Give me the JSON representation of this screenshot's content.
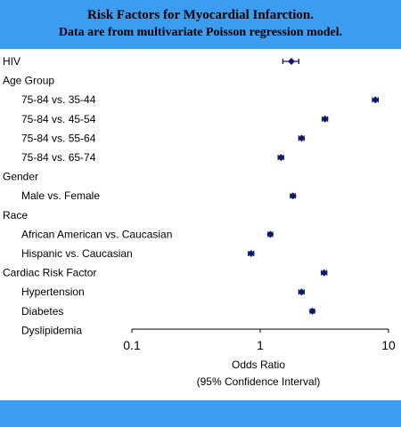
{
  "chart_data": {
    "type": "forest",
    "title": "Risk Factors for Myocardial Infarction.",
    "subtitle": "Data are from multivariate Poisson regression model.",
    "xlabel": [
      "Odds Ratio",
      "(95% Confidence Interval)"
    ],
    "xscale": "log",
    "xlim": [
      0.1,
      10
    ],
    "xticks": [
      "0.1",
      "1",
      "10"
    ],
    "rows": [
      {
        "label": "HIV",
        "indent": false,
        "or": 1.75,
        "lo": 1.5,
        "hi": 2.0
      },
      {
        "label": "Age Group",
        "indent": false,
        "or": null
      },
      {
        "label": "75-84 vs. 35-44",
        "indent": true,
        "or": 7.9,
        "lo": 7.5,
        "hi": 8.3
      },
      {
        "label": "75-84 vs. 45-54",
        "indent": true,
        "or": 3.2,
        "lo": 3.05,
        "hi": 3.35
      },
      {
        "label": "75-84 vs. 55-64",
        "indent": true,
        "or": 2.1,
        "lo": 2.0,
        "hi": 2.2
      },
      {
        "label": "75-84 vs. 65-74",
        "indent": true,
        "or": 1.45,
        "lo": 1.38,
        "hi": 1.52
      },
      {
        "label": "Gender",
        "indent": false,
        "or": null
      },
      {
        "label": "Male vs. Female",
        "indent": true,
        "or": 1.8,
        "lo": 1.72,
        "hi": 1.88
      },
      {
        "label": "Race",
        "indent": false,
        "or": null
      },
      {
        "label": "African American vs. Caucasian",
        "indent": true,
        "or": 1.2,
        "lo": 1.15,
        "hi": 1.25
      },
      {
        "label": "Hispanic vs. Caucasian",
        "indent": true,
        "or": 0.85,
        "lo": 0.81,
        "hi": 0.89
      },
      {
        "label": "Cardiac Risk Factor",
        "indent": false,
        "or": 3.15,
        "lo": 3.0,
        "hi": 3.3
      },
      {
        "label": "Hypertension",
        "indent": true,
        "or": 2.1,
        "lo": 2.0,
        "hi": 2.2
      },
      {
        "label": "Diabetes",
        "indent": true,
        "or": 2.55,
        "lo": 2.45,
        "hi": 2.65
      },
      {
        "label": "Dyslipidemia",
        "indent": true,
        "or": null
      }
    ],
    "marker_color": "#0b1a6e",
    "background": "#3b9cf0"
  }
}
